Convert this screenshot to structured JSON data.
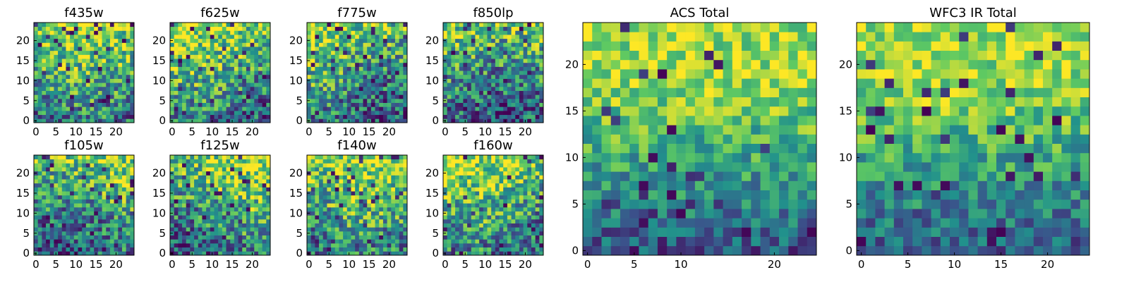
{
  "chart_data": [
    {
      "type": "heatmap",
      "title": "f435w",
      "xticks": [
        0,
        5,
        10,
        15,
        20
      ],
      "yticks": [
        0,
        5,
        10,
        15,
        20
      ],
      "grid_size": 25,
      "xlim": [
        0,
        24
      ],
      "ylim": [
        0,
        24
      ]
    },
    {
      "type": "heatmap",
      "title": "f625w",
      "xticks": [
        0,
        5,
        10,
        15,
        20
      ],
      "yticks": [
        0,
        5,
        10,
        15,
        20
      ],
      "grid_size": 25,
      "xlim": [
        0,
        24
      ],
      "ylim": [
        0,
        24
      ]
    },
    {
      "type": "heatmap",
      "title": "f775w",
      "xticks": [
        0,
        5,
        10,
        15,
        20
      ],
      "yticks": [
        0,
        5,
        10,
        15,
        20
      ],
      "grid_size": 25,
      "xlim": [
        0,
        24
      ],
      "ylim": [
        0,
        24
      ]
    },
    {
      "type": "heatmap",
      "title": "f850lp",
      "xticks": [
        0,
        5,
        10,
        15,
        20
      ],
      "yticks": [
        0,
        5,
        10,
        15,
        20
      ],
      "grid_size": 25,
      "xlim": [
        0,
        24
      ],
      "ylim": [
        0,
        24
      ]
    },
    {
      "type": "heatmap",
      "title": "f105w",
      "xticks": [
        0,
        5,
        10,
        15,
        20
      ],
      "yticks": [
        0,
        5,
        10,
        15,
        20
      ],
      "grid_size": 25,
      "xlim": [
        0,
        24
      ],
      "ylim": [
        0,
        24
      ]
    },
    {
      "type": "heatmap",
      "title": "f125w",
      "xticks": [
        0,
        5,
        10,
        15,
        20
      ],
      "yticks": [
        0,
        5,
        10,
        15,
        20
      ],
      "grid_size": 25,
      "xlim": [
        0,
        24
      ],
      "ylim": [
        0,
        24
      ]
    },
    {
      "type": "heatmap",
      "title": "f140w",
      "xticks": [
        0,
        5,
        10,
        15,
        20
      ],
      "yticks": [
        0,
        5,
        10,
        15,
        20
      ],
      "grid_size": 25,
      "xlim": [
        0,
        24
      ],
      "ylim": [
        0,
        24
      ]
    },
    {
      "type": "heatmap",
      "title": "f160w",
      "xticks": [
        0,
        5,
        10,
        15,
        20
      ],
      "yticks": [
        0,
        5,
        10,
        15,
        20
      ],
      "grid_size": 25,
      "xlim": [
        0,
        24
      ],
      "ylim": [
        0,
        24
      ]
    },
    {
      "type": "heatmap",
      "title": "ACS Total",
      "xticks": [
        0,
        5,
        10,
        20
      ],
      "yticks": [
        0,
        5,
        10,
        15,
        20
      ],
      "grid_size": 25,
      "xlim": [
        0,
        24
      ],
      "ylim": [
        0,
        24
      ]
    },
    {
      "type": "heatmap",
      "title": "WFC3 IR Total",
      "xticks": [
        0,
        5,
        10,
        15,
        20
      ],
      "yticks": [
        0,
        5,
        10,
        15,
        20
      ],
      "grid_size": 25,
      "xlim": [
        0,
        24
      ],
      "ylim": [
        0,
        24
      ]
    }
  ],
  "colormap": {
    "name": "viridis",
    "stops": [
      "#440154",
      "#3b528b",
      "#21918c",
      "#5ec962",
      "#fde725"
    ]
  }
}
